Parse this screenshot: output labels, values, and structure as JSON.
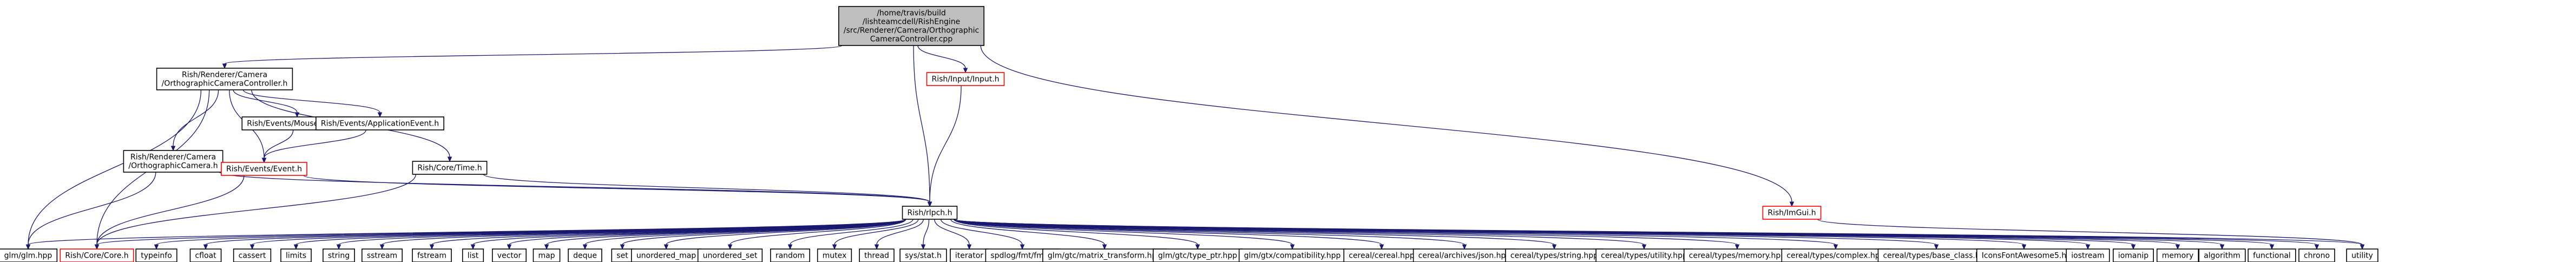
{
  "colors": {
    "edge": "#191970",
    "node_border": "#000000",
    "node_fill": "#ffffff",
    "root_fill": "#bfbfbf",
    "linked_border": "#ff0000"
  },
  "graph": {
    "root": {
      "lines": [
        "/home/travis/build",
        "/lishteamcdell/RishEngine",
        "/src/Renderer/Camera/Orthographic",
        "CameraController.cpp"
      ]
    },
    "nodes": [
      {
        "id": "occ_h",
        "lines": [
          "Rish/Renderer/Camera",
          "/OrthographicCameraController.h"
        ],
        "style": "plain"
      },
      {
        "id": "input_h",
        "lines": [
          "Rish/Input/Input.h"
        ],
        "style": "linked"
      },
      {
        "id": "mouse_h",
        "lines": [
          "Rish/Events/MouseEvent.h"
        ],
        "style": "plain"
      },
      {
        "id": "app_h",
        "lines": [
          "Rish/Events/ApplicationEvent.h"
        ],
        "style": "plain"
      },
      {
        "id": "cam_h",
        "lines": [
          "Rish/Renderer/Camera",
          "/OrthographicCamera.h"
        ],
        "style": "plain"
      },
      {
        "id": "event_h",
        "lines": [
          "Rish/Events/Event.h"
        ],
        "style": "linked"
      },
      {
        "id": "time_h",
        "lines": [
          "Rish/Core/Time.h"
        ],
        "style": "plain"
      },
      {
        "id": "rlpch_h",
        "lines": [
          "Rish/rlpch.h"
        ],
        "style": "plain"
      },
      {
        "id": "imgui_h",
        "lines": [
          "Rish/ImGui.h"
        ],
        "style": "linked"
      },
      {
        "id": "glm_hpp",
        "lines": [
          "glm/glm.hpp"
        ],
        "style": "plain"
      },
      {
        "id": "core_h",
        "lines": [
          "Rish/Core/Core.h"
        ],
        "style": "linked"
      },
      {
        "id": "typeinfo",
        "lines": [
          "typeinfo"
        ],
        "style": "plain"
      },
      {
        "id": "cfloat",
        "lines": [
          "cfloat"
        ],
        "style": "plain"
      },
      {
        "id": "cassert",
        "lines": [
          "cassert"
        ],
        "style": "plain"
      },
      {
        "id": "limits",
        "lines": [
          "limits"
        ],
        "style": "plain"
      },
      {
        "id": "string",
        "lines": [
          "string"
        ],
        "style": "plain"
      },
      {
        "id": "sstream",
        "lines": [
          "sstream"
        ],
        "style": "plain"
      },
      {
        "id": "fstream",
        "lines": [
          "fstream"
        ],
        "style": "plain"
      },
      {
        "id": "list",
        "lines": [
          "list"
        ],
        "style": "plain"
      },
      {
        "id": "vector",
        "lines": [
          "vector"
        ],
        "style": "plain"
      },
      {
        "id": "map",
        "lines": [
          "map"
        ],
        "style": "plain"
      },
      {
        "id": "deque",
        "lines": [
          "deque"
        ],
        "style": "plain"
      },
      {
        "id": "set",
        "lines": [
          "set"
        ],
        "style": "plain"
      },
      {
        "id": "umap",
        "lines": [
          "unordered_map"
        ],
        "style": "plain"
      },
      {
        "id": "uset",
        "lines": [
          "unordered_set"
        ],
        "style": "plain"
      },
      {
        "id": "random",
        "lines": [
          "random"
        ],
        "style": "plain"
      },
      {
        "id": "mutex",
        "lines": [
          "mutex"
        ],
        "style": "plain"
      },
      {
        "id": "thread",
        "lines": [
          "thread"
        ],
        "style": "plain"
      },
      {
        "id": "sysstat",
        "lines": [
          "sys/stat.h"
        ],
        "style": "plain"
      },
      {
        "id": "iterator",
        "lines": [
          "iterator"
        ],
        "style": "plain"
      },
      {
        "id": "spdlog",
        "lines": [
          "spdlog/fmt/fmt.h"
        ],
        "style": "plain"
      },
      {
        "id": "glm_mt",
        "lines": [
          "glm/gtc/matrix_transform.hpp"
        ],
        "style": "plain"
      },
      {
        "id": "glm_tp",
        "lines": [
          "glm/gtc/type_ptr.hpp"
        ],
        "style": "plain"
      },
      {
        "id": "glm_compat",
        "lines": [
          "glm/gtx/compatibility.hpp"
        ],
        "style": "plain"
      },
      {
        "id": "cereal",
        "lines": [
          "cereal/cereal.hpp"
        ],
        "style": "plain"
      },
      {
        "id": "cer_json",
        "lines": [
          "cereal/archives/json.hpp"
        ],
        "style": "plain"
      },
      {
        "id": "cer_string",
        "lines": [
          "cereal/types/string.hpp"
        ],
        "style": "plain"
      },
      {
        "id": "cer_utility",
        "lines": [
          "cereal/types/utility.hpp"
        ],
        "style": "plain"
      },
      {
        "id": "cer_memory",
        "lines": [
          "cereal/types/memory.hpp"
        ],
        "style": "plain"
      },
      {
        "id": "cer_complex",
        "lines": [
          "cereal/types/complex.hpp"
        ],
        "style": "plain"
      },
      {
        "id": "cer_base",
        "lines": [
          "cereal/types/base_class.hpp"
        ],
        "style": "plain"
      },
      {
        "id": "iconsfa",
        "lines": [
          "IconsFontAwesome5.h"
        ],
        "style": "plain"
      },
      {
        "id": "iostream",
        "lines": [
          "iostream"
        ],
        "style": "plain"
      },
      {
        "id": "iomanip",
        "lines": [
          "iomanip"
        ],
        "style": "plain"
      },
      {
        "id": "memory",
        "lines": [
          "memory"
        ],
        "style": "plain"
      },
      {
        "id": "algorithm",
        "lines": [
          "algorithm"
        ],
        "style": "plain"
      },
      {
        "id": "functional",
        "lines": [
          "functional"
        ],
        "style": "plain"
      },
      {
        "id": "chrono",
        "lines": [
          "chrono"
        ],
        "style": "plain"
      },
      {
        "id": "utility",
        "lines": [
          "utility"
        ],
        "style": "plain"
      }
    ],
    "edges": [
      [
        "root",
        "occ_h"
      ],
      [
        "root",
        "input_h"
      ],
      [
        "root",
        "rlpch_h"
      ],
      [
        "root",
        "imgui_h"
      ],
      [
        "occ_h",
        "glm_hpp"
      ],
      [
        "occ_h",
        "core_h"
      ],
      [
        "occ_h",
        "cam_h"
      ],
      [
        "occ_h",
        "event_h"
      ],
      [
        "occ_h",
        "mouse_h"
      ],
      [
        "occ_h",
        "app_h"
      ],
      [
        "occ_h",
        "time_h"
      ],
      [
        "input_h",
        "rlpch_h"
      ],
      [
        "mouse_h",
        "event_h"
      ],
      [
        "app_h",
        "event_h"
      ],
      [
        "cam_h",
        "glm_hpp"
      ],
      [
        "cam_h",
        "rlpch_h"
      ],
      [
        "event_h",
        "core_h"
      ],
      [
        "event_h",
        "rlpch_h"
      ],
      [
        "time_h",
        "core_h"
      ],
      [
        "time_h",
        "rlpch_h"
      ],
      [
        "imgui_h",
        "utility"
      ],
      [
        "rlpch_h",
        "glm_hpp"
      ],
      [
        "rlpch_h",
        "core_h"
      ],
      [
        "rlpch_h",
        "typeinfo"
      ],
      [
        "rlpch_h",
        "cfloat"
      ],
      [
        "rlpch_h",
        "cassert"
      ],
      [
        "rlpch_h",
        "limits"
      ],
      [
        "rlpch_h",
        "string"
      ],
      [
        "rlpch_h",
        "sstream"
      ],
      [
        "rlpch_h",
        "fstream"
      ],
      [
        "rlpch_h",
        "list"
      ],
      [
        "rlpch_h",
        "vector"
      ],
      [
        "rlpch_h",
        "map"
      ],
      [
        "rlpch_h",
        "deque"
      ],
      [
        "rlpch_h",
        "set"
      ],
      [
        "rlpch_h",
        "umap"
      ],
      [
        "rlpch_h",
        "uset"
      ],
      [
        "rlpch_h",
        "random"
      ],
      [
        "rlpch_h",
        "mutex"
      ],
      [
        "rlpch_h",
        "thread"
      ],
      [
        "rlpch_h",
        "sysstat"
      ],
      [
        "rlpch_h",
        "iterator"
      ],
      [
        "rlpch_h",
        "spdlog"
      ],
      [
        "rlpch_h",
        "glm_mt"
      ],
      [
        "rlpch_h",
        "glm_tp"
      ],
      [
        "rlpch_h",
        "glm_compat"
      ],
      [
        "rlpch_h",
        "cereal"
      ],
      [
        "rlpch_h",
        "cer_json"
      ],
      [
        "rlpch_h",
        "cer_string"
      ],
      [
        "rlpch_h",
        "cer_utility"
      ],
      [
        "rlpch_h",
        "cer_memory"
      ],
      [
        "rlpch_h",
        "cer_complex"
      ],
      [
        "rlpch_h",
        "cer_base"
      ],
      [
        "rlpch_h",
        "iconsfa"
      ],
      [
        "rlpch_h",
        "iostream"
      ],
      [
        "rlpch_h",
        "iomanip"
      ],
      [
        "rlpch_h",
        "memory"
      ],
      [
        "rlpch_h",
        "algorithm"
      ],
      [
        "rlpch_h",
        "functional"
      ],
      [
        "rlpch_h",
        "chrono"
      ],
      [
        "rlpch_h",
        "utility"
      ]
    ]
  }
}
